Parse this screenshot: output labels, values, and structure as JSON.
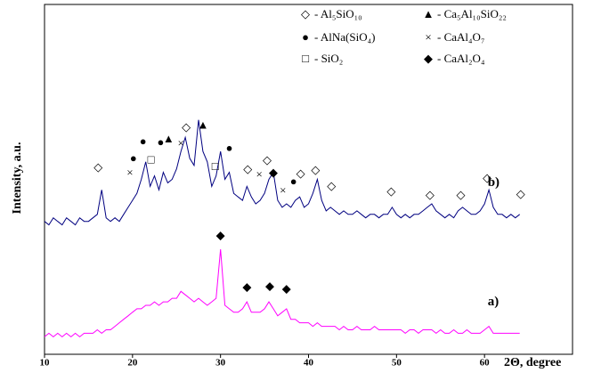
{
  "chart_data": {
    "type": "line",
    "x_label": "2Θ, degree",
    "y_label": "Intensity, a.u.",
    "xlim": [
      10,
      70
    ],
    "xticks": [
      10,
      20,
      30,
      40,
      50,
      60
    ],
    "ylim": [
      0,
      100
    ],
    "x": [
      10,
      10.5,
      11,
      11.5,
      12,
      12.5,
      13,
      13.5,
      14,
      14.5,
      15,
      15.5,
      16,
      16.5,
      17,
      17.5,
      18,
      18.5,
      19,
      19.5,
      20,
      20.5,
      21,
      21.5,
      22,
      22.5,
      23,
      23.5,
      24,
      24.5,
      25,
      25.5,
      26,
      26.5,
      27,
      27.5,
      28,
      28.5,
      29,
      29.5,
      30,
      30.5,
      31,
      31.5,
      32,
      32.5,
      33,
      33.5,
      34,
      34.5,
      35,
      35.5,
      36,
      36.5,
      37,
      37.5,
      38,
      38.5,
      39,
      39.5,
      40,
      40.5,
      41,
      41.5,
      42,
      42.5,
      43,
      43.5,
      44,
      44.5,
      45,
      45.5,
      46,
      46.5,
      47,
      47.5,
      48,
      48.5,
      49,
      49.5,
      50,
      50.5,
      51,
      51.5,
      52,
      52.5,
      53,
      53.5,
      54,
      54.5,
      55,
      55.5,
      56,
      56.5,
      57,
      57.5,
      58,
      58.5,
      59,
      59.5,
      60,
      60.5,
      61,
      61.5,
      62,
      62.5,
      63,
      63.5,
      64
    ],
    "series": [
      {
        "name": "b)",
        "color": "#000080",
        "values": [
          38,
          37,
          39,
          38,
          37,
          39,
          38,
          37,
          39,
          38,
          38,
          39,
          40,
          47,
          39,
          38,
          39,
          38,
          40,
          42,
          44,
          46,
          50,
          55,
          48,
          51,
          47,
          52,
          49,
          50,
          53,
          58,
          62,
          56,
          54,
          67,
          58,
          55,
          48,
          51,
          58,
          50,
          52,
          46,
          45,
          44,
          48,
          45,
          43,
          44,
          46,
          50,
          52,
          44,
          42,
          43,
          42,
          44,
          45,
          42,
          43,
          46,
          50,
          44,
          41,
          42,
          41,
          40,
          41,
          40,
          40,
          41,
          40,
          39,
          40,
          40,
          39,
          40,
          40,
          42,
          40,
          39,
          40,
          39,
          40,
          40,
          41,
          42,
          43,
          41,
          40,
          39,
          40,
          39,
          41,
          42,
          41,
          40,
          40,
          41,
          43,
          47,
          42,
          40,
          40,
          39,
          40,
          39,
          40
        ]
      },
      {
        "name": "a)",
        "color": "#ff00ff",
        "values": [
          5,
          6,
          5,
          6,
          5,
          6,
          5,
          6,
          5,
          6,
          6,
          6,
          7,
          6,
          7,
          7,
          8,
          9,
          10,
          11,
          12,
          13,
          13,
          14,
          14,
          15,
          14,
          15,
          15,
          16,
          16,
          18,
          17,
          16,
          15,
          16,
          15,
          14,
          15,
          16,
          30,
          14,
          13,
          12,
          12,
          13,
          15,
          12,
          12,
          12,
          13,
          15,
          13,
          11,
          12,
          13,
          10,
          10,
          9,
          9,
          9,
          8,
          9,
          8,
          8,
          8,
          8,
          7,
          8,
          7,
          7,
          8,
          7,
          7,
          7,
          8,
          7,
          7,
          7,
          7,
          7,
          7,
          6,
          7,
          7,
          6,
          7,
          7,
          7,
          6,
          7,
          6,
          6,
          7,
          6,
          6,
          7,
          6,
          6,
          6,
          7,
          8,
          6,
          6,
          6,
          6,
          6,
          6,
          6
        ]
      }
    ],
    "legend": [
      {
        "symbol": "◇",
        "label": "- Al₅SiO₁₀"
      },
      {
        "symbol": "●",
        "label": "- AlNa(SiO₄)"
      },
      {
        "symbol": "□",
        "label": "- SiO₂"
      },
      {
        "symbol": "▲",
        "label": "- Ca₅Al₁₀SiO₂₂"
      },
      {
        "symbol": "×",
        "label": "- CaAl₄O₇"
      },
      {
        "symbol": "◆",
        "label": "- CaAl₂O₄"
      }
    ],
    "annotations": [
      {
        "text": "◇",
        "x": 16.1,
        "y": 53.2
      },
      {
        "text": "●",
        "x": 20.1,
        "y": 55.7
      },
      {
        "text": "×",
        "x": 19.7,
        "y": 51.6
      },
      {
        "text": "●",
        "x": 21.2,
        "y": 60.5
      },
      {
        "text": "●",
        "x": 23.2,
        "y": 60.3
      },
      {
        "text": "□",
        "x": 22.1,
        "y": 55.4
      },
      {
        "text": "▲",
        "x": 24.1,
        "y": 61.3
      },
      {
        "text": "×",
        "x": 25.5,
        "y": 60
      },
      {
        "text": "◇",
        "x": 26.1,
        "y": 64.6
      },
      {
        "text": "▲",
        "x": 28,
        "y": 65.3
      },
      {
        "text": "□",
        "x": 29.4,
        "y": 53.4
      },
      {
        "text": "●",
        "x": 31,
        "y": 58.7
      },
      {
        "text": "◇",
        "x": 33.1,
        "y": 52.7
      },
      {
        "text": "×",
        "x": 34.4,
        "y": 51.1
      },
      {
        "text": "◇",
        "x": 35.3,
        "y": 55.2
      },
      {
        "text": "◆",
        "x": 36,
        "y": 51.6
      },
      {
        "text": "×",
        "x": 37.1,
        "y": 46.6
      },
      {
        "text": "●",
        "x": 38.3,
        "y": 49.1
      },
      {
        "text": "◇",
        "x": 39.1,
        "y": 51.4
      },
      {
        "text": "◇",
        "x": 40.8,
        "y": 52.4
      },
      {
        "text": "◇",
        "x": 42.6,
        "y": 47.8
      },
      {
        "text": "◇",
        "x": 49.4,
        "y": 46.3
      },
      {
        "text": "◇",
        "x": 53.8,
        "y": 45.3
      },
      {
        "text": "◇",
        "x": 57.3,
        "y": 45.3
      },
      {
        "text": "◇",
        "x": 60.3,
        "y": 50.1
      },
      {
        "text": "◇",
        "x": 64.1,
        "y": 45.6
      },
      {
        "text": "◆",
        "x": 30,
        "y": 33.7
      },
      {
        "text": "◆",
        "x": 33,
        "y": 19
      },
      {
        "text": "◆",
        "x": 35.6,
        "y": 19.2
      },
      {
        "text": "◆",
        "x": 37.5,
        "y": 18.5
      }
    ]
  }
}
